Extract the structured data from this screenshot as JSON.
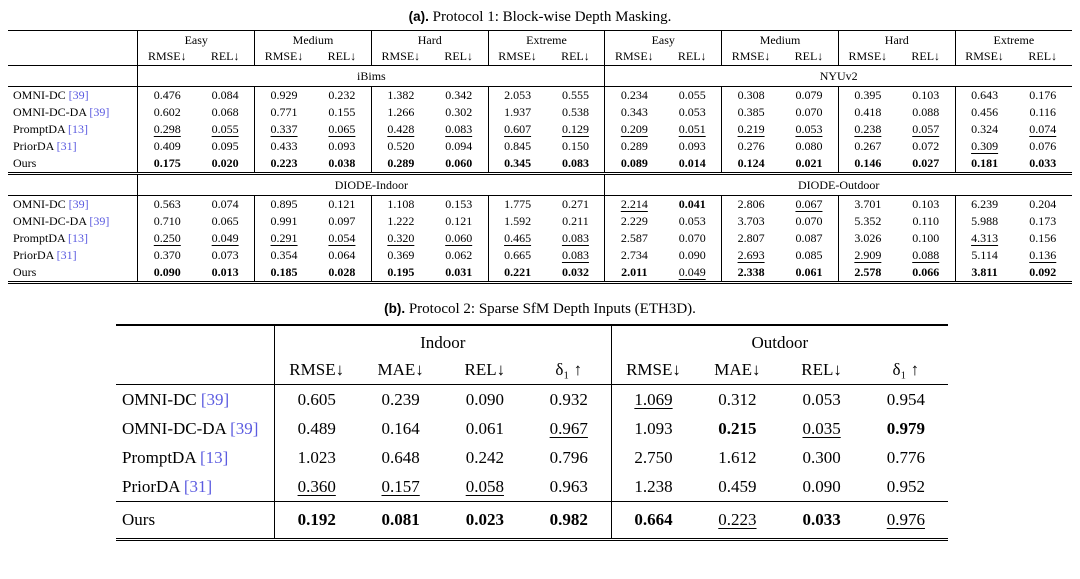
{
  "page": {
    "background": "#ffffff",
    "text_color": "#000000"
  },
  "colors": {
    "citation": "#5b5be0"
  },
  "caption_a": {
    "tag": "(a).",
    "text": "Protocol 1: Block-wise Depth Masking."
  },
  "caption_b": {
    "tag": "(b).",
    "text": "Protocol 2: Sparse SfM Depth Inputs (ETH3D)."
  },
  "table_a": {
    "group_headers": [
      "Easy",
      "Medium",
      "Hard",
      "Extreme",
      "Easy",
      "Medium",
      "Hard",
      "Extreme"
    ],
    "metric_pair": [
      "RMSE↓",
      "REL↓"
    ],
    "sections": [
      {
        "bands": [
          "iBims",
          "NYUv2"
        ],
        "rows": [
          {
            "method": "OMNI-DC",
            "cite": "[39]",
            "cells": [
              "0.476",
              "0.084",
              "0.929",
              "0.232",
              "1.382",
              "0.342",
              "2.053",
              "0.555",
              "0.234",
              "0.055",
              "0.308",
              "0.079",
              "0.395",
              "0.103",
              "0.643",
              "0.176"
            ]
          },
          {
            "method": "OMNI-DC-DA",
            "cite": "[39]",
            "cells": [
              "0.602",
              "0.068",
              "0.771",
              "0.155",
              "1.266",
              "0.302",
              "1.937",
              "0.538",
              "0.343",
              "0.053",
              "0.385",
              "0.070",
              "0.418",
              "0.088",
              "0.456",
              "0.116"
            ]
          },
          {
            "method": "PromptDA",
            "cite": "[13]",
            "cells": [
              "u:0.298",
              "u:0.055",
              "u:0.337",
              "u:0.065",
              "u:0.428",
              "u:0.083",
              "u:0.607",
              "u:0.129",
              "u:0.209",
              "u:0.051",
              "u:0.219",
              "u:0.053",
              "u:0.238",
              "u:0.057",
              "0.324",
              "u:0.074"
            ]
          },
          {
            "method": "PriorDA",
            "cite": "[31]",
            "cells": [
              "0.409",
              "0.095",
              "0.433",
              "0.093",
              "0.520",
              "0.094",
              "0.845",
              "0.150",
              "0.289",
              "0.093",
              "0.276",
              "0.080",
              "0.267",
              "0.072",
              "u:0.309",
              "0.076"
            ]
          },
          {
            "method": "Ours",
            "cite": "",
            "cells": [
              "b:0.175",
              "b:0.020",
              "b:0.223",
              "b:0.038",
              "b:0.289",
              "b:0.060",
              "b:0.345",
              "b:0.083",
              "b:0.089",
              "b:0.014",
              "b:0.124",
              "b:0.021",
              "b:0.146",
              "b:0.027",
              "b:0.181",
              "b:0.033"
            ]
          }
        ]
      },
      {
        "bands": [
          "DIODE-Indoor",
          "DIODE-Outdoor"
        ],
        "rows": [
          {
            "method": "OMNI-DC",
            "cite": "[39]",
            "cells": [
              "0.563",
              "0.074",
              "0.895",
              "0.121",
              "1.108",
              "0.153",
              "1.775",
              "0.271",
              "u:2.214",
              "b:0.041",
              "2.806",
              "u:0.067",
              "3.701",
              "0.103",
              "6.239",
              "0.204"
            ]
          },
          {
            "method": "OMNI-DC-DA",
            "cite": "[39]",
            "cells": [
              "0.710",
              "0.065",
              "0.991",
              "0.097",
              "1.222",
              "0.121",
              "1.592",
              "0.211",
              "2.229",
              "0.053",
              "3.703",
              "0.070",
              "5.352",
              "0.110",
              "5.988",
              "0.173"
            ]
          },
          {
            "method": "PromptDA",
            "cite": "[13]",
            "cells": [
              "u:0.250",
              "u:0.049",
              "u:0.291",
              "u:0.054",
              "u:0.320",
              "u:0.060",
              "u:0.465",
              "u:0.083",
              "2.587",
              "0.070",
              "2.807",
              "0.087",
              "3.026",
              "0.100",
              "u:4.313",
              "0.156"
            ]
          },
          {
            "method": "PriorDA",
            "cite": "[31]",
            "cells": [
              "0.370",
              "0.073",
              "0.354",
              "0.064",
              "0.369",
              "0.062",
              "0.665",
              "u:0.083",
              "2.734",
              "0.090",
              "u:2.693",
              "0.085",
              "u:2.909",
              "u:0.088",
              "5.114",
              "u:0.136"
            ]
          },
          {
            "method": "Ours",
            "cite": "",
            "cells": [
              "b:0.090",
              "b:0.013",
              "b:0.185",
              "b:0.028",
              "b:0.195",
              "b:0.031",
              "b:0.221",
              "b:0.032",
              "b:2.011",
              "u:0.049",
              "b:2.338",
              "b:0.061",
              "b:2.578",
              "b:0.066",
              "b:3.811",
              "b:0.092"
            ]
          }
        ]
      }
    ]
  },
  "table_b": {
    "group_headers": [
      "Indoor",
      "Outdoor"
    ],
    "metric_headers": [
      "RMSE↓",
      "MAE↓",
      "REL↓",
      "δ₁ ↑"
    ],
    "baseline_rows": [
      {
        "method": "OMNI-DC",
        "cite": "[39]",
        "cells": [
          "0.605",
          "0.239",
          "0.090",
          "0.932",
          "u:1.069",
          "0.312",
          "0.053",
          "0.954"
        ]
      },
      {
        "method": "OMNI-DC-DA",
        "cite": "[39]",
        "cells": [
          "0.489",
          "0.164",
          "0.061",
          "u:0.967",
          "1.093",
          "b:0.215",
          "u:0.035",
          "b:0.979"
        ]
      },
      {
        "method": "PromptDA",
        "cite": "[13]",
        "cells": [
          "1.023",
          "0.648",
          "0.242",
          "0.796",
          "2.750",
          "1.612",
          "0.300",
          "0.776"
        ]
      },
      {
        "method": "PriorDA",
        "cite": "[31]",
        "cells": [
          "u:0.360",
          "u:0.157",
          "u:0.058",
          "0.963",
          "1.238",
          "0.459",
          "0.090",
          "0.952"
        ]
      }
    ],
    "ours_row": {
      "method": "Ours",
      "cite": "",
      "cells": [
        "b:0.192",
        "b:0.081",
        "b:0.023",
        "b:0.982",
        "b:0.664",
        "u:0.223",
        "b:0.033",
        "u:0.976"
      ]
    }
  }
}
